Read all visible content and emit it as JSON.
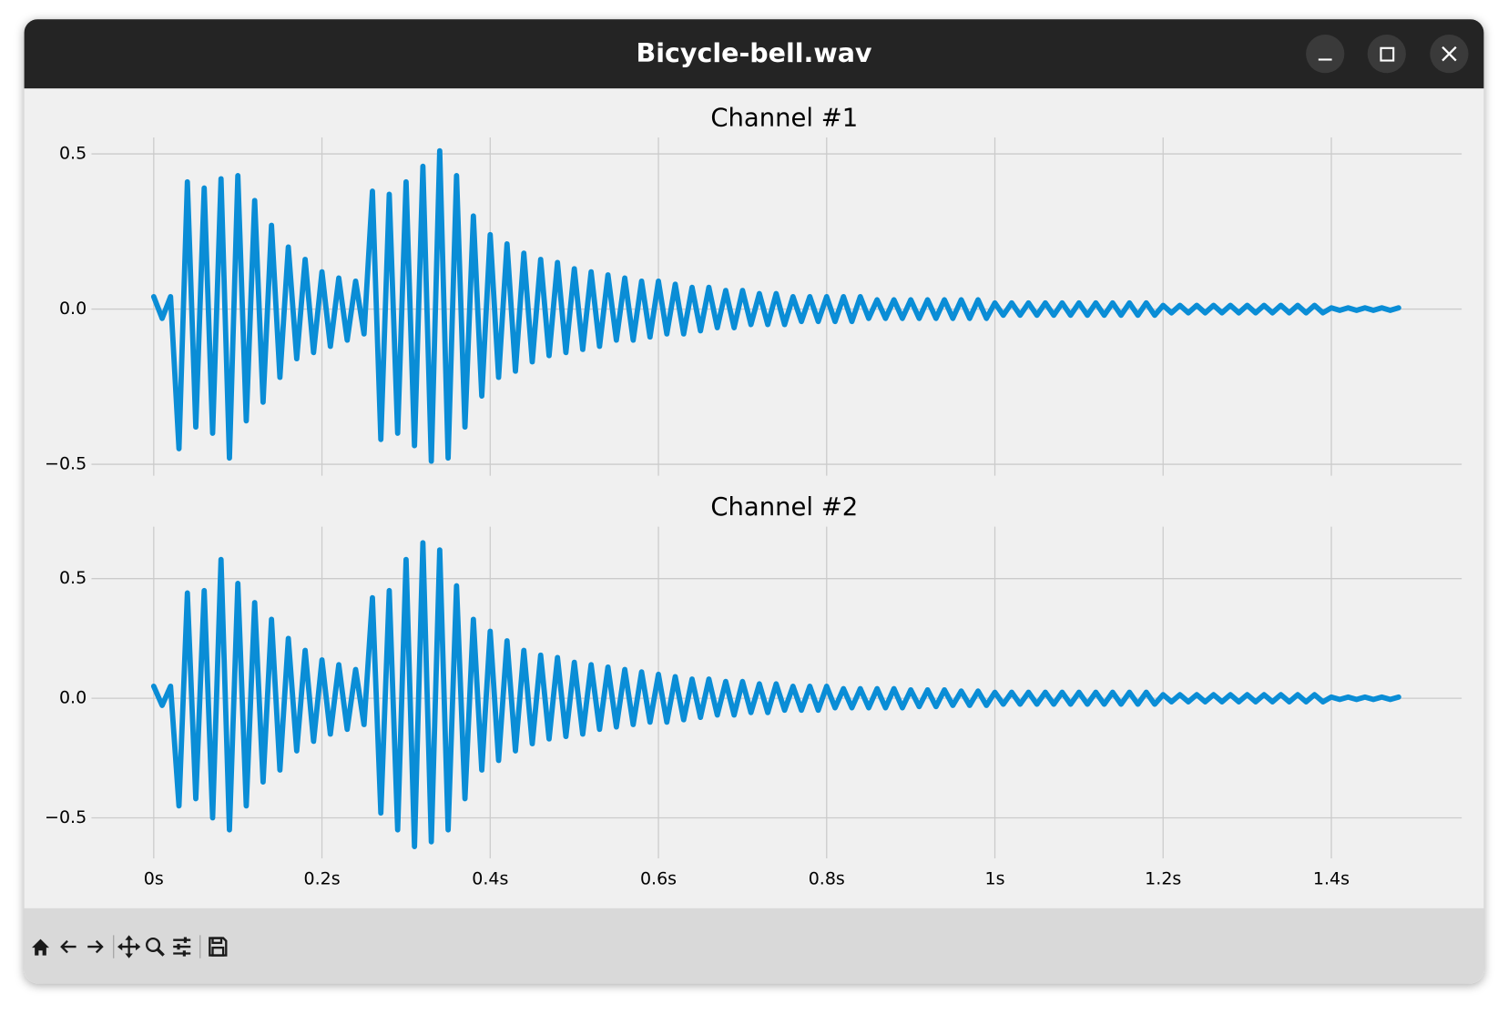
{
  "window": {
    "title": "Bicycle-bell.wav"
  },
  "chart_data": [
    {
      "type": "line",
      "title": "Channel #1",
      "color": "#0a8dd6",
      "grid": true,
      "xlim": [
        -0.074,
        1.555
      ],
      "ylim": [
        -0.537,
        0.553
      ],
      "xticks": [
        0,
        0.2,
        0.4,
        0.6,
        0.8,
        1,
        1.2,
        1.4
      ],
      "yticks": [
        {
          "value": -0.5,
          "label": "−0.5"
        },
        {
          "value": 0,
          "label": "0.0"
        },
        0.5
      ],
      "x": [
        0,
        0.01,
        0.02,
        0.03,
        0.04,
        0.05,
        0.06,
        0.07,
        0.08,
        0.09,
        0.1,
        0.11,
        0.12,
        0.13,
        0.14,
        0.15,
        0.16,
        0.17,
        0.18,
        0.19,
        0.2,
        0.21,
        0.22,
        0.23,
        0.24,
        0.25,
        0.26,
        0.27,
        0.28,
        0.29,
        0.3,
        0.31,
        0.32,
        0.33,
        0.34,
        0.35,
        0.36,
        0.37,
        0.38,
        0.39,
        0.4,
        0.41,
        0.42,
        0.43,
        0.44,
        0.45,
        0.46,
        0.47,
        0.48,
        0.49,
        0.5,
        0.51,
        0.52,
        0.53,
        0.54,
        0.55,
        0.56,
        0.57,
        0.58,
        0.59,
        0.6,
        0.61,
        0.62,
        0.63,
        0.64,
        0.65,
        0.66,
        0.67,
        0.68,
        0.69,
        0.7,
        0.71,
        0.72,
        0.73,
        0.74,
        0.75,
        0.76,
        0.77,
        0.78,
        0.79,
        0.8,
        0.81,
        0.82,
        0.83,
        0.84,
        0.85,
        0.86,
        0.87,
        0.88,
        0.89,
        0.9,
        0.91,
        0.92,
        0.93,
        0.94,
        0.95,
        0.96,
        0.97,
        0.98,
        0.99,
        1,
        1.01,
        1.02,
        1.03,
        1.04,
        1.05,
        1.06,
        1.07,
        1.08,
        1.09,
        1.1,
        1.11,
        1.12,
        1.13,
        1.14,
        1.15,
        1.16,
        1.17,
        1.18,
        1.19,
        1.2,
        1.21,
        1.22,
        1.23,
        1.24,
        1.25,
        1.26,
        1.27,
        1.28,
        1.29,
        1.3,
        1.31,
        1.32,
        1.33,
        1.34,
        1.35,
        1.36,
        1.37,
        1.38,
        1.39,
        1.4,
        1.41,
        1.42,
        1.43,
        1.44,
        1.45,
        1.46,
        1.47,
        1.48
      ],
      "values": [
        0.04,
        -0.03,
        0.04,
        -0.45,
        0.41,
        -0.38,
        0.39,
        -0.4,
        0.42,
        -0.48,
        0.43,
        -0.36,
        0.35,
        -0.3,
        0.27,
        -0.22,
        0.2,
        -0.16,
        0.16,
        -0.14,
        0.12,
        -0.12,
        0.1,
        -0.1,
        0.09,
        -0.08,
        0.38,
        -0.42,
        0.37,
        -0.4,
        0.41,
        -0.44,
        0.46,
        -0.49,
        0.51,
        -0.48,
        0.43,
        -0.38,
        0.3,
        -0.28,
        0.24,
        -0.22,
        0.21,
        -0.2,
        0.18,
        -0.17,
        0.16,
        -0.15,
        0.15,
        -0.14,
        0.13,
        -0.13,
        0.12,
        -0.12,
        0.11,
        -0.1,
        0.1,
        -0.1,
        0.09,
        -0.09,
        0.09,
        -0.08,
        0.08,
        -0.08,
        0.07,
        -0.07,
        0.07,
        -0.06,
        0.06,
        -0.06,
        0.06,
        -0.05,
        0.05,
        -0.05,
        0.05,
        -0.05,
        0.04,
        -0.04,
        0.04,
        -0.04,
        0.04,
        -0.04,
        0.04,
        -0.04,
        0.04,
        -0.03,
        0.03,
        -0.03,
        0.03,
        -0.03,
        0.03,
        -0.03,
        0.03,
        -0.03,
        0.03,
        -0.03,
        0.03,
        -0.03,
        0.03,
        -0.03,
        0.02,
        -0.02,
        0.02,
        -0.02,
        0.02,
        -0.02,
        0.02,
        -0.02,
        0.02,
        -0.02,
        0.02,
        -0.02,
        0.02,
        -0.02,
        0.02,
        -0.02,
        0.02,
        -0.02,
        0.02,
        -0.02,
        0.012,
        -0.012,
        0.012,
        -0.012,
        0.012,
        -0.012,
        0.012,
        -0.012,
        0.012,
        -0.012,
        0.012,
        -0.012,
        0.012,
        -0.012,
        0.012,
        -0.012,
        0.012,
        -0.012,
        0.012,
        -0.012,
        0.004,
        -0.004,
        0.004,
        -0.004,
        0.004,
        -0.004,
        0.004,
        -0.004,
        0.004
      ]
    },
    {
      "type": "line",
      "title": "Channel #2",
      "color": "#0a8dd6",
      "grid": true,
      "xlim": [
        -0.074,
        1.555
      ],
      "ylim": [
        -0.669,
        0.717
      ],
      "xticks": [
        {
          "value": 0,
          "label": "0s"
        },
        {
          "value": 0.2,
          "label": "0.2s"
        },
        {
          "value": 0.4,
          "label": "0.4s"
        },
        {
          "value": 0.6,
          "label": "0.6s"
        },
        {
          "value": 0.8,
          "label": "0.8s"
        },
        {
          "value": 1,
          "label": "1s"
        },
        {
          "value": 1.2,
          "label": "1.2s"
        },
        {
          "value": 1.4,
          "label": "1.4s"
        }
      ],
      "yticks": [
        {
          "value": -0.5,
          "label": "−0.5"
        },
        {
          "value": 0,
          "label": "0.0"
        },
        0.5
      ],
      "x": [
        0,
        0.01,
        0.02,
        0.03,
        0.04,
        0.05,
        0.06,
        0.07,
        0.08,
        0.09,
        0.1,
        0.11,
        0.12,
        0.13,
        0.14,
        0.15,
        0.16,
        0.17,
        0.18,
        0.19,
        0.2,
        0.21,
        0.22,
        0.23,
        0.24,
        0.25,
        0.26,
        0.27,
        0.28,
        0.29,
        0.3,
        0.31,
        0.32,
        0.33,
        0.34,
        0.35,
        0.36,
        0.37,
        0.38,
        0.39,
        0.4,
        0.41,
        0.42,
        0.43,
        0.44,
        0.45,
        0.46,
        0.47,
        0.48,
        0.49,
        0.5,
        0.51,
        0.52,
        0.53,
        0.54,
        0.55,
        0.56,
        0.57,
        0.58,
        0.59,
        0.6,
        0.61,
        0.62,
        0.63,
        0.64,
        0.65,
        0.66,
        0.67,
        0.68,
        0.69,
        0.7,
        0.71,
        0.72,
        0.73,
        0.74,
        0.75,
        0.76,
        0.77,
        0.78,
        0.79,
        0.8,
        0.81,
        0.82,
        0.83,
        0.84,
        0.85,
        0.86,
        0.87,
        0.88,
        0.89,
        0.9,
        0.91,
        0.92,
        0.93,
        0.94,
        0.95,
        0.96,
        0.97,
        0.98,
        0.99,
        1,
        1.01,
        1.02,
        1.03,
        1.04,
        1.05,
        1.06,
        1.07,
        1.08,
        1.09,
        1.1,
        1.11,
        1.12,
        1.13,
        1.14,
        1.15,
        1.16,
        1.17,
        1.18,
        1.19,
        1.2,
        1.21,
        1.22,
        1.23,
        1.24,
        1.25,
        1.26,
        1.27,
        1.28,
        1.29,
        1.3,
        1.31,
        1.32,
        1.33,
        1.34,
        1.35,
        1.36,
        1.37,
        1.38,
        1.39,
        1.4,
        1.41,
        1.42,
        1.43,
        1.44,
        1.45,
        1.46,
        1.47,
        1.48
      ],
      "values": [
        0.05,
        -0.03,
        0.05,
        -0.45,
        0.44,
        -0.42,
        0.45,
        -0.5,
        0.58,
        -0.55,
        0.48,
        -0.45,
        0.4,
        -0.35,
        0.33,
        -0.3,
        0.25,
        -0.22,
        0.2,
        -0.18,
        0.16,
        -0.15,
        0.14,
        -0.13,
        0.12,
        -0.11,
        0.42,
        -0.48,
        0.45,
        -0.55,
        0.58,
        -0.62,
        0.65,
        -0.6,
        0.62,
        -0.55,
        0.47,
        -0.42,
        0.33,
        -0.3,
        0.28,
        -0.26,
        0.24,
        -0.22,
        0.2,
        -0.19,
        0.18,
        -0.17,
        0.17,
        -0.16,
        0.15,
        -0.15,
        0.14,
        -0.13,
        0.13,
        -0.12,
        0.12,
        -0.11,
        0.11,
        -0.1,
        0.1,
        -0.1,
        0.09,
        -0.09,
        0.08,
        -0.08,
        0.08,
        -0.07,
        0.07,
        -0.07,
        0.07,
        -0.06,
        0.06,
        -0.06,
        0.06,
        -0.05,
        0.05,
        -0.05,
        0.05,
        -0.05,
        0.05,
        -0.04,
        0.04,
        -0.04,
        0.04,
        -0.04,
        0.04,
        -0.04,
        0.04,
        -0.04,
        0.035,
        -0.035,
        0.035,
        -0.035,
        0.035,
        -0.03,
        0.03,
        -0.03,
        0.03,
        -0.03,
        0.025,
        -0.025,
        0.025,
        -0.025,
        0.025,
        -0.025,
        0.025,
        -0.025,
        0.025,
        -0.025,
        0.025,
        -0.025,
        0.025,
        -0.025,
        0.025,
        -0.025,
        0.025,
        -0.025,
        0.025,
        -0.025,
        0.015,
        -0.015,
        0.015,
        -0.015,
        0.015,
        -0.015,
        0.015,
        -0.015,
        0.015,
        -0.015,
        0.015,
        -0.015,
        0.015,
        -0.015,
        0.015,
        -0.015,
        0.015,
        -0.015,
        0.015,
        -0.015,
        0.005,
        -0.005,
        0.005,
        -0.005,
        0.005,
        -0.005,
        0.005,
        -0.005,
        0.005
      ]
    }
  ]
}
